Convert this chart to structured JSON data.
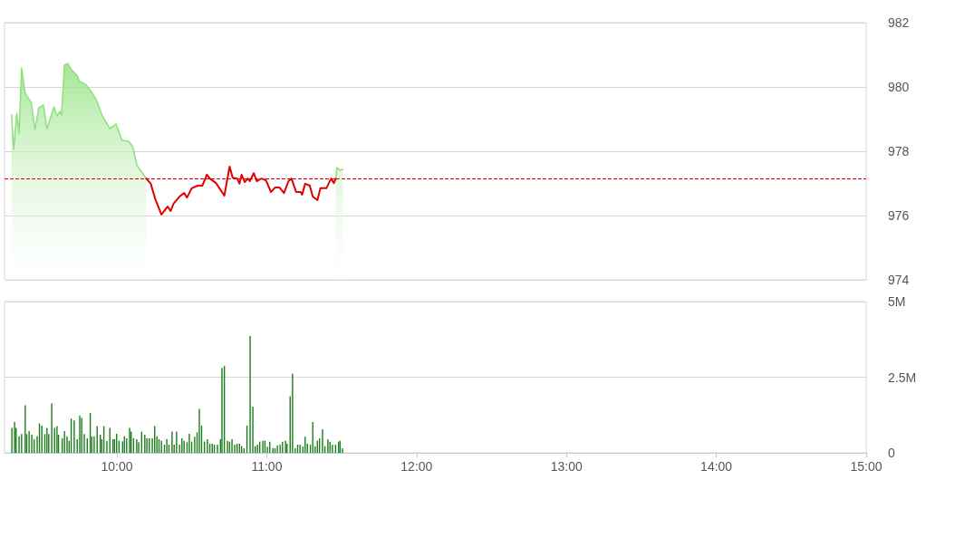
{
  "chart_data": [
    {
      "type": "area",
      "xlim": [
        9.25,
        15
      ],
      "ylim": [
        974,
        982
      ],
      "yticks": [
        974,
        976,
        978,
        980,
        982
      ],
      "grid": "y",
      "marker": "none",
      "tick_labels": "y",
      "x": [
        9.297,
        9.311,
        9.332,
        9.347,
        9.364,
        9.388,
        9.408,
        9.428,
        9.453,
        9.479,
        9.509,
        9.533,
        9.58,
        9.6,
        9.62,
        9.63,
        9.65,
        9.671,
        9.701,
        9.732,
        9.752,
        9.792,
        9.832,
        9.862,
        9.903,
        9.953,
        9.994,
        10.035,
        10.079,
        10.105,
        10.135,
        10.196,
        10.226,
        10.256,
        10.297,
        10.338,
        10.358,
        10.378,
        10.418,
        10.448,
        10.468,
        10.499,
        10.539,
        10.57,
        10.59,
        10.6,
        10.62,
        10.661,
        10.717,
        10.752,
        10.772,
        10.802,
        10.818,
        10.832,
        10.853,
        10.873,
        10.887,
        10.913,
        10.933,
        10.964,
        10.994,
        11.028,
        11.055,
        11.085,
        11.115,
        11.145,
        11.165,
        11.196,
        11.226,
        11.236,
        11.256,
        11.287,
        11.307,
        11.338,
        11.358,
        11.398,
        11.429,
        11.448,
        11.46,
        11.468,
        11.489,
        11.509
      ],
      "series": [
        {
          "color": "#8ee07a",
          "values": [
            979.13,
            978.06,
            979.18,
            978.56,
            980.59,
            979.8,
            979.66,
            979.52,
            978.68,
            979.35,
            979.44,
            978.7,
            979.38,
            979.1,
            979.24,
            979.13,
            980.68,
            980.73,
            980.51,
            980.37,
            980.17,
            980.08,
            979.83,
            979.61,
            979.1,
            978.7,
            978.85,
            978.34,
            978.31,
            978.14,
            977.55,
            977.15,
            null,
            null,
            null,
            null,
            null,
            null,
            null,
            null,
            null,
            null,
            null,
            null,
            null,
            null,
            null,
            null,
            null,
            null,
            null,
            null,
            null,
            null,
            null,
            null,
            null,
            null,
            null,
            null,
            null,
            null,
            null,
            null,
            null,
            null,
            null,
            null,
            null,
            null,
            null,
            null,
            null,
            null,
            null,
            null,
            null,
            null,
            977.15,
            977.49,
            977.41,
            977.44
          ]
        },
        {
          "type": "line",
          "color": "#e00000",
          "values": [
            null,
            null,
            null,
            null,
            null,
            null,
            null,
            null,
            null,
            null,
            null,
            null,
            null,
            null,
            null,
            null,
            null,
            null,
            null,
            null,
            null,
            null,
            null,
            null,
            null,
            null,
            null,
            null,
            null,
            null,
            null,
            977.15,
            976.99,
            976.51,
            976.03,
            976.28,
            976.14,
            976.37,
            976.59,
            976.7,
            976.56,
            976.85,
            976.93,
            976.93,
            977.15,
            977.27,
            977.15,
            977.01,
            976.62,
            977.52,
            977.18,
            977.15,
            976.99,
            977.27,
            977.04,
            977.15,
            977.07,
            977.32,
            977.07,
            977.15,
            977.1,
            976.73,
            976.87,
            976.87,
            976.7,
            977.07,
            977.15,
            976.73,
            976.73,
            976.65,
            976.99,
            976.93,
            976.59,
            976.48,
            976.85,
            976.85,
            977.15,
            977.01,
            977.15,
            null,
            null,
            null
          ]
        }
      ],
      "ref_lines": [
        {
          "axis": "y",
          "value": 977.15,
          "color": "#e00000",
          "line_style": "dashed"
        }
      ]
    },
    {
      "type": "bar",
      "xlim": [
        9.25,
        15
      ],
      "xticks": [
        {
          "value": 10,
          "label": "10:00"
        },
        {
          "value": 11,
          "label": "11:00"
        },
        {
          "value": 12,
          "label": "12:00"
        },
        {
          "value": 13,
          "label": "13:00"
        },
        {
          "value": 14,
          "label": "14:00"
        },
        {
          "value": 15,
          "label": "15:00"
        }
      ],
      "ylim": [
        0,
        5
      ],
      "yticks": [
        0,
        {
          "value": 2.5,
          "label": "2.5M"
        },
        {
          "value": 5,
          "label": "5M"
        }
      ],
      "grid": "y",
      "x": [
        9.299,
        9.317,
        9.327,
        9.347,
        9.364,
        9.388,
        9.398,
        9.414,
        9.432,
        9.448,
        9.468,
        9.483,
        9.499,
        9.519,
        9.533,
        9.545,
        9.565,
        9.584,
        9.6,
        9.61,
        9.635,
        9.65,
        9.667,
        9.681,
        9.695,
        9.715,
        9.735,
        9.752,
        9.765,
        9.782,
        9.802,
        9.822,
        9.832,
        9.848,
        9.868,
        9.889,
        9.899,
        9.913,
        9.933,
        9.953,
        9.974,
        9.984,
        9.998,
        10.014,
        10.038,
        10.05,
        10.065,
        10.085,
        10.095,
        10.111,
        10.132,
        10.145,
        10.165,
        10.186,
        10.2,
        10.216,
        10.236,
        10.252,
        10.267,
        10.281,
        10.297,
        10.317,
        10.333,
        10.347,
        10.368,
        10.382,
        10.398,
        10.418,
        10.434,
        10.448,
        10.468,
        10.483,
        10.499,
        10.519,
        10.535,
        10.55,
        10.565,
        10.584,
        10.604,
        10.62,
        10.636,
        10.65,
        10.671,
        10.691,
        10.701,
        10.717,
        10.738,
        10.752,
        10.768,
        10.786,
        10.802,
        10.818,
        10.832,
        10.848,
        10.868,
        10.889,
        10.907,
        10.923,
        10.938,
        10.953,
        10.974,
        10.988,
        11.004,
        11.02,
        11.041,
        11.055,
        11.071,
        11.089,
        11.105,
        11.125,
        11.135,
        11.156,
        11.172,
        11.19,
        11.206,
        11.222,
        11.241,
        11.256,
        11.271,
        11.291,
        11.307,
        11.323,
        11.338,
        11.352,
        11.372,
        11.388,
        11.408,
        11.422,
        11.438,
        11.459,
        11.479,
        11.489,
        11.505
      ],
      "series": [
        {
          "color": "#1a7d1a",
          "values": [
            0.82,
            1.02,
            0.82,
            0.55,
            0.62,
            1.57,
            0.62,
            0.72,
            0.6,
            0.45,
            0.55,
            0.97,
            0.9,
            0.62,
            0.82,
            0.62,
            1.63,
            0.82,
            0.88,
            0.6,
            0.48,
            0.72,
            0.55,
            0.4,
            1.13,
            1.07,
            0.45,
            1.23,
            1.15,
            0.62,
            0.48,
            1.32,
            0.55,
            0.55,
            0.88,
            0.6,
            0.45,
            0.88,
            0.4,
            0.82,
            0.45,
            0.45,
            0.63,
            0.4,
            0.38,
            0.55,
            0.48,
            0.82,
            0.7,
            0.48,
            0.45,
            0.35,
            0.7,
            0.6,
            0.48,
            0.48,
            0.48,
            0.88,
            0.55,
            0.45,
            0.4,
            0.27,
            0.45,
            0.27,
            0.7,
            0.27,
            0.7,
            0.27,
            0.48,
            0.4,
            0.35,
            0.63,
            0.37,
            0.53,
            0.68,
            1.45,
            0.9,
            0.37,
            0.45,
            0.3,
            0.3,
            0.27,
            0.27,
            0.45,
            2.81,
            2.87,
            0.4,
            0.37,
            0.45,
            0.27,
            0.3,
            0.3,
            0.22,
            0.15,
            0.9,
            3.86,
            1.53,
            0.22,
            0.27,
            0.37,
            0.4,
            0.4,
            0.2,
            0.37,
            0.15,
            0.15,
            0.25,
            0.27,
            0.37,
            0.4,
            0.3,
            1.87,
            2.61,
            0.15,
            0.27,
            0.27,
            0.2,
            0.53,
            0.3,
            0.27,
            1.02,
            0.22,
            0.4,
            0.48,
            0.78,
            0.22,
            0.45,
            0.37,
            0.27,
            0.27,
            0.37,
            0.4,
            0.15
          ]
        }
      ]
    }
  ]
}
